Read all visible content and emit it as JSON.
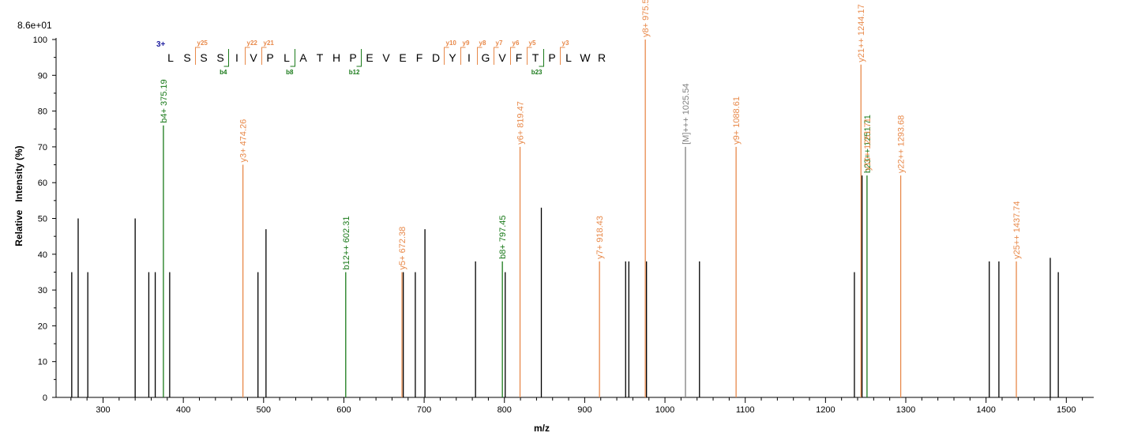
{
  "chart_data": {
    "type": "bar",
    "max_intensity_label": "8.6e+01",
    "xlabel": "m/z",
    "ylabel": "Relative   Intensity (%)",
    "xlim": [
      240,
      1530
    ],
    "ylim": [
      0,
      100
    ],
    "x_ticks": [
      300,
      400,
      500,
      600,
      700,
      800,
      900,
      1000,
      1100,
      1200,
      1300,
      1400,
      1500
    ],
    "y_ticks": [
      0,
      10,
      20,
      30,
      40,
      50,
      60,
      70,
      80,
      90,
      100
    ],
    "colors": {
      "unassigned": "#000000",
      "b_ion": "#1a7a1a",
      "y_ion": "#e8894a",
      "precursor": "#7f7f7f",
      "charge": "#1f1fa0"
    },
    "peaks": [
      {
        "mz": 261.0,
        "intensity": 35,
        "kind": "unassigned"
      },
      {
        "mz": 269.0,
        "intensity": 50,
        "kind": "unassigned"
      },
      {
        "mz": 281.0,
        "intensity": 35,
        "kind": "unassigned"
      },
      {
        "mz": 340.0,
        "intensity": 50,
        "kind": "unassigned"
      },
      {
        "mz": 357.0,
        "intensity": 35,
        "kind": "unassigned"
      },
      {
        "mz": 365.0,
        "intensity": 35,
        "kind": "unassigned"
      },
      {
        "mz": 375.19,
        "intensity": 76,
        "kind": "b_ion",
        "label": "b4+ 375.19"
      },
      {
        "mz": 383.0,
        "intensity": 35,
        "kind": "unassigned"
      },
      {
        "mz": 474.26,
        "intensity": 65,
        "kind": "y_ion",
        "label": "y3+ 474.26"
      },
      {
        "mz": 493.0,
        "intensity": 35,
        "kind": "unassigned"
      },
      {
        "mz": 503.0,
        "intensity": 47,
        "kind": "unassigned"
      },
      {
        "mz": 602.31,
        "intensity": 35,
        "kind": "b_ion",
        "label": "b12++ 602.31"
      },
      {
        "mz": 672.38,
        "intensity": 35,
        "kind": "y_ion",
        "label": "y5+ 672.38"
      },
      {
        "mz": 674.0,
        "intensity": 35,
        "kind": "unassigned"
      },
      {
        "mz": 689.0,
        "intensity": 35,
        "kind": "unassigned"
      },
      {
        "mz": 701.0,
        "intensity": 47,
        "kind": "unassigned"
      },
      {
        "mz": 764.0,
        "intensity": 38,
        "kind": "unassigned"
      },
      {
        "mz": 797.45,
        "intensity": 38,
        "kind": "b_ion",
        "label": "b8+ 797.45"
      },
      {
        "mz": 801.0,
        "intensity": 35,
        "kind": "unassigned"
      },
      {
        "mz": 819.47,
        "intensity": 70,
        "kind": "y_ion",
        "label": "y6+ 819.47"
      },
      {
        "mz": 846.0,
        "intensity": 53,
        "kind": "unassigned"
      },
      {
        "mz": 918.43,
        "intensity": 38,
        "kind": "y_ion",
        "label": "y7+ 918.43"
      },
      {
        "mz": 951.0,
        "intensity": 38,
        "kind": "unassigned"
      },
      {
        "mz": 955.0,
        "intensity": 38,
        "kind": "unassigned"
      },
      {
        "mz": 975.51,
        "intensity": 100,
        "kind": "y_ion",
        "label": "y8+ 975.51"
      },
      {
        "mz": 977.0,
        "intensity": 38,
        "kind": "unassigned"
      },
      {
        "mz": 1025.54,
        "intensity": 70,
        "kind": "precursor",
        "label": "[M]+++ 1025.54"
      },
      {
        "mz": 1043.0,
        "intensity": 38,
        "kind": "unassigned"
      },
      {
        "mz": 1088.61,
        "intensity": 70,
        "kind": "y_ion",
        "label": "y9+ 1088.61"
      },
      {
        "mz": 1236.0,
        "intensity": 35,
        "kind": "unassigned"
      },
      {
        "mz": 1244.17,
        "intensity": 93,
        "kind": "y_ion",
        "label": "y21++ 1244.17"
      },
      {
        "mz": 1245.5,
        "intensity": 62,
        "kind": "unassigned"
      },
      {
        "mz": 1251.71,
        "intensity": 62,
        "kind": "b_ion",
        "label": "b23++ 1251.71"
      },
      {
        "mz": 1293.68,
        "intensity": 62,
        "kind": "y_ion",
        "label": "y22++ 1293.68"
      },
      {
        "mz": 1404.0,
        "intensity": 38,
        "kind": "unassigned"
      },
      {
        "mz": 1416.0,
        "intensity": 38,
        "kind": "unassigned"
      },
      {
        "mz": 1437.74,
        "intensity": 38,
        "kind": "y_ion",
        "label": "y25++ 1437.74"
      },
      {
        "mz": 1480.0,
        "intensity": 39,
        "kind": "unassigned"
      },
      {
        "mz": 1490.0,
        "intensity": 35,
        "kind": "unassigned"
      }
    ],
    "annotations": [
      {
        "text": "y10+ 1251.71",
        "kind": "y_ion"
      }
    ],
    "sequence": {
      "charge": "3+",
      "residues": [
        "L",
        "S",
        "S",
        "S",
        "I",
        "V",
        "P",
        "L",
        "A",
        "T",
        "H",
        "P",
        "E",
        "V",
        "E",
        "F",
        "D",
        "Y",
        "I",
        "G",
        "V",
        "F",
        "T",
        "P",
        "L",
        "W",
        "R"
      ],
      "y_ions": [
        {
          "after": 2,
          "label": "y25"
        },
        {
          "after": 5,
          "label": "y22"
        },
        {
          "after": 6,
          "label": "y21"
        },
        {
          "after": 17,
          "label": "y10"
        },
        {
          "after": 18,
          "label": "y9"
        },
        {
          "after": 19,
          "label": "y8"
        },
        {
          "after": 20,
          "label": "y7"
        },
        {
          "after": 21,
          "label": "y6"
        },
        {
          "after": 22,
          "label": "y5"
        },
        {
          "after": 24,
          "label": "y3"
        }
      ],
      "b_ions": [
        {
          "after": 4,
          "label": "b4"
        },
        {
          "after": 8,
          "label": "b8"
        },
        {
          "after": 12,
          "label": "b12"
        },
        {
          "after": 23,
          "label": "b23"
        }
      ]
    }
  }
}
